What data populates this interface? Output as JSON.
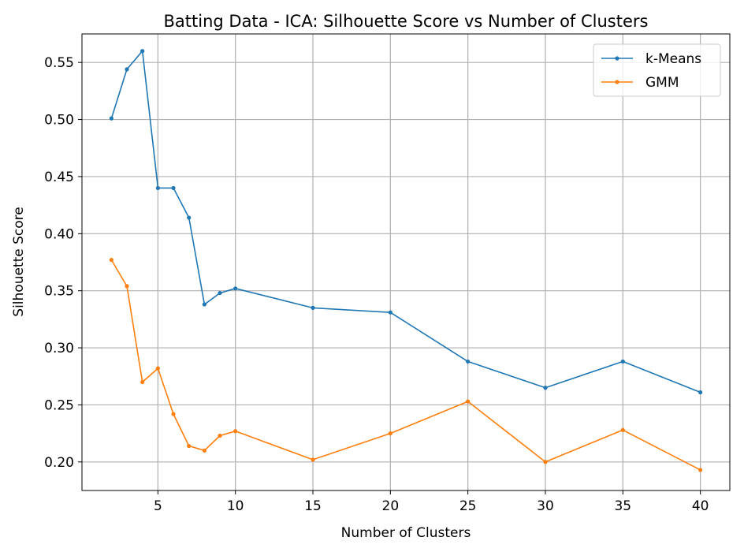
{
  "chart_data": {
    "type": "line",
    "title": "Batting Data - ICA: Silhouette Score vs Number of Clusters",
    "xlabel": "Number of Clusters",
    "ylabel": "Silhouette Score",
    "xlim": [
      0.1,
      41.9
    ],
    "ylim": [
      0.175,
      0.575
    ],
    "xticks": [
      5,
      10,
      15,
      20,
      25,
      30,
      35,
      40
    ],
    "yticks": [
      0.2,
      0.25,
      0.3,
      0.35,
      0.4,
      0.45,
      0.5,
      0.55
    ],
    "xtick_labels": [
      "5",
      "10",
      "15",
      "20",
      "25",
      "30",
      "35",
      "40"
    ],
    "ytick_labels": [
      "0.20",
      "0.25",
      "0.30",
      "0.35",
      "0.40",
      "0.45",
      "0.50",
      "0.55"
    ],
    "grid": true,
    "legend_position": "top-right",
    "x": [
      2,
      3,
      4,
      5,
      6,
      7,
      8,
      9,
      10,
      15,
      20,
      25,
      30,
      35,
      40
    ],
    "series": [
      {
        "name": "k-Means",
        "color": "#1f77b4",
        "values": [
          0.501,
          0.544,
          0.56,
          0.44,
          0.44,
          0.414,
          0.338,
          0.348,
          0.352,
          0.335,
          0.331,
          0.288,
          0.265,
          0.288,
          0.261
        ]
      },
      {
        "name": "GMM",
        "color": "#ff7f0e",
        "values": [
          0.377,
          0.354,
          0.27,
          0.282,
          0.242,
          0.214,
          0.21,
          0.223,
          0.227,
          0.202,
          0.225,
          0.253,
          0.2,
          0.228,
          0.193
        ]
      }
    ]
  }
}
